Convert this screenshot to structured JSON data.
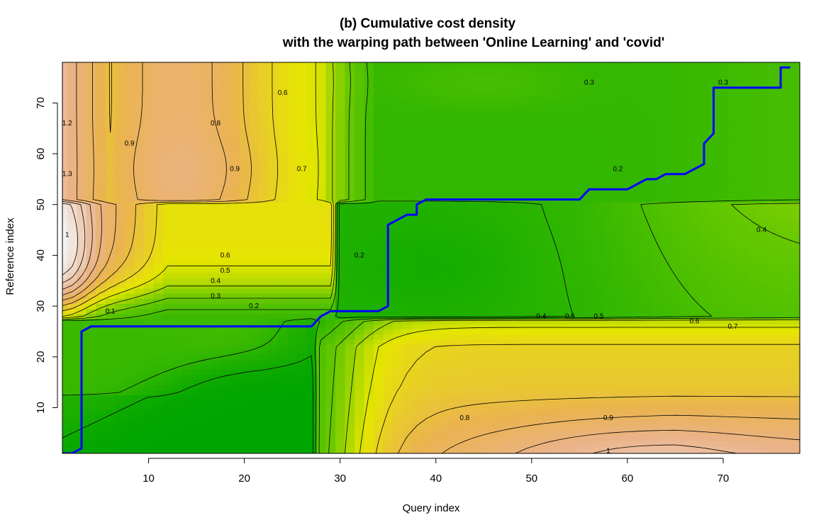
{
  "chart_data": {
    "type": "heatmap",
    "title_line1": "(b) Cumulative cost density",
    "title_line2": "with the warping path between 'Online Learning' and 'covid'",
    "xlabel": "Query index",
    "ylabel": "Reference index",
    "xlim": [
      1,
      78
    ],
    "ylim": [
      1,
      78
    ],
    "x_ticks": [
      10,
      20,
      30,
      40,
      50,
      60,
      70
    ],
    "y_ticks": [
      10,
      20,
      30,
      40,
      50,
      60,
      70
    ],
    "color_scale": [
      "#00a600",
      "#e6e600",
      "#eab38a",
      "#f2f2f2"
    ],
    "path_color": "#0000ff",
    "warping_path": [
      [
        1,
        1
      ],
      [
        2,
        1
      ],
      [
        3,
        2
      ],
      [
        3,
        25
      ],
      [
        4,
        26
      ],
      [
        27,
        26
      ],
      [
        28,
        28
      ],
      [
        29,
        29
      ],
      [
        34,
        29
      ],
      [
        35,
        30
      ],
      [
        35,
        46
      ],
      [
        36,
        47
      ],
      [
        37,
        48
      ],
      [
        38,
        48
      ],
      [
        38,
        50
      ],
      [
        39,
        51
      ],
      [
        55,
        51
      ],
      [
        56,
        53
      ],
      [
        60,
        53
      ],
      [
        62,
        55
      ],
      [
        63,
        55
      ],
      [
        64,
        56
      ],
      [
        66,
        56
      ],
      [
        68,
        58
      ],
      [
        68,
        62
      ],
      [
        69,
        64
      ],
      [
        69,
        73
      ],
      [
        76,
        73
      ],
      [
        76,
        77
      ],
      [
        77,
        77
      ]
    ],
    "contour_labels": [
      {
        "text": "0.6",
        "x": 24,
        "y": 72
      },
      {
        "text": "0.8",
        "x": 17,
        "y": 66
      },
      {
        "text": "0.9",
        "x": 8,
        "y": 62
      },
      {
        "text": "0.9",
        "x": 19,
        "y": 57
      },
      {
        "text": "0.7",
        "x": 26,
        "y": 57
      },
      {
        "text": "1.2",
        "x": 1.5,
        "y": 66
      },
      {
        "text": "1.3",
        "x": 1.5,
        "y": 56
      },
      {
        "text": "1",
        "x": 1.5,
        "y": 44
      },
      {
        "text": "0.6",
        "x": 18,
        "y": 40
      },
      {
        "text": "0.5",
        "x": 18,
        "y": 37
      },
      {
        "text": "0.4",
        "x": 17,
        "y": 35
      },
      {
        "text": "0.3",
        "x": 17,
        "y": 32
      },
      {
        "text": "0.2",
        "x": 21,
        "y": 30
      },
      {
        "text": "0.1",
        "x": 6,
        "y": 29
      },
      {
        "text": "0.2",
        "x": 32,
        "y": 40
      },
      {
        "text": "0.2",
        "x": 59,
        "y": 57
      },
      {
        "text": "0.3",
        "x": 56,
        "y": 74
      },
      {
        "text": "0.3",
        "x": 70,
        "y": 74
      },
      {
        "text": "0.4",
        "x": 74,
        "y": 45
      },
      {
        "text": "0.4",
        "x": 51,
        "y": 28
      },
      {
        "text": "0.5",
        "x": 54,
        "y": 28
      },
      {
        "text": "0.5",
        "x": 57,
        "y": 28
      },
      {
        "text": "0.6",
        "x": 67,
        "y": 27
      },
      {
        "text": "0.7",
        "x": 71,
        "y": 26
      },
      {
        "text": "0.8",
        "x": 43,
        "y": 8
      },
      {
        "text": "0.9",
        "x": 58,
        "y": 8
      },
      {
        "text": "1",
        "x": 58,
        "y": 1.5
      }
    ]
  }
}
